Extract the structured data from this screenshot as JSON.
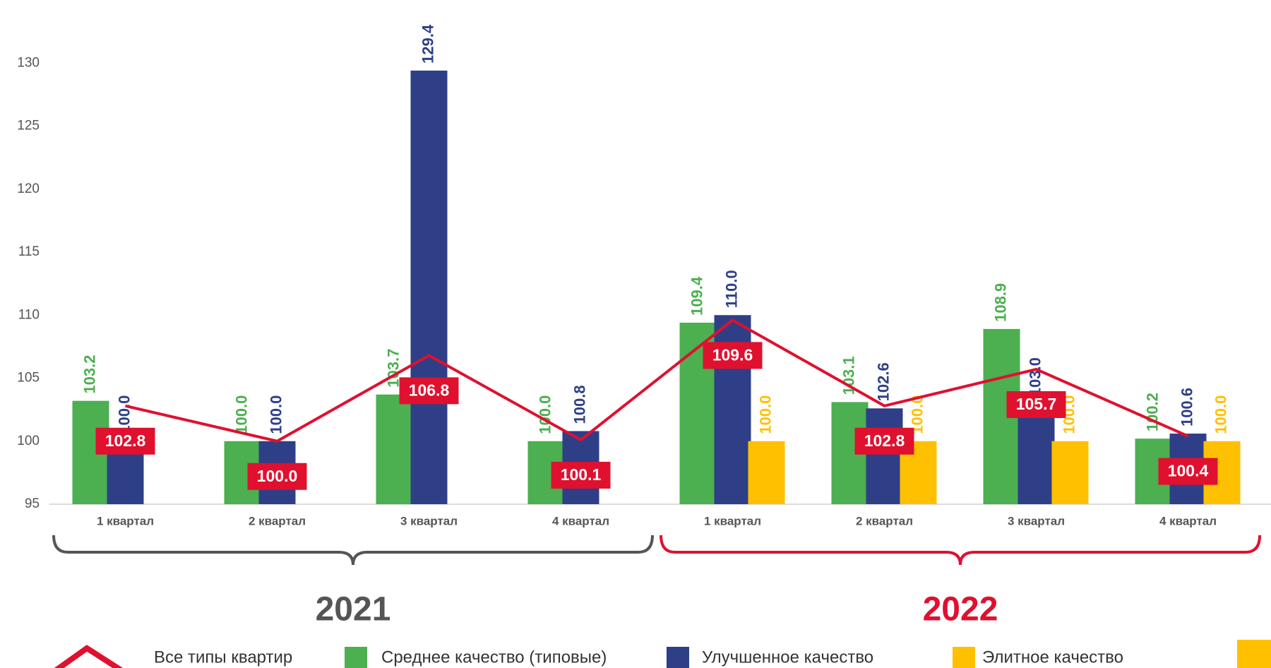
{
  "chart_data": {
    "type": "bar",
    "categories": [
      "1 квартал",
      "2 квартал",
      "3 квартал",
      "4 квартал",
      "1 квартал",
      "2 квартал",
      "3 квартал",
      "4 квартал"
    ],
    "groups": [
      "2021",
      "2022"
    ],
    "group_colors": [
      "#555555",
      "#e0102f"
    ],
    "series": [
      {
        "name": "Все типы квартир",
        "type": "line",
        "color": "#e0102f",
        "values": [
          102.8,
          100.0,
          106.8,
          100.1,
          109.6,
          102.8,
          105.7,
          100.4
        ],
        "value_labels": [
          "102.8",
          "100.0",
          "106.8",
          "100.1",
          "109.6",
          "102.8",
          "105.7",
          "100.4"
        ]
      },
      {
        "name": "Среднее качество (типовые)",
        "type": "bar",
        "color": "#4caf50",
        "values": [
          103.2,
          100.0,
          103.7,
          100.0,
          109.4,
          103.1,
          108.9,
          100.2
        ],
        "value_labels": [
          "103.2",
          "100.0",
          "103.7",
          "100.0",
          "109.4",
          "103.1",
          "108.9",
          "100.2"
        ]
      },
      {
        "name": "Улучшенное качество",
        "type": "bar",
        "color": "#2e3f87",
        "values": [
          100.0,
          100.0,
          129.4,
          100.8,
          110.0,
          102.6,
          103.0,
          100.6
        ],
        "value_labels": [
          "100.0",
          "100.0",
          "129.4",
          "100.8",
          "110.0",
          "102.6",
          "103.0",
          "100.6"
        ]
      },
      {
        "name": "Элитное качество",
        "type": "bar",
        "color": "#ffc000",
        "values": [
          null,
          null,
          null,
          null,
          100.0,
          100.0,
          100.0,
          100.0
        ],
        "value_labels": [
          null,
          null,
          null,
          null,
          "100.0",
          "100.0",
          "100.0",
          "100.0"
        ]
      }
    ],
    "ylim": [
      95,
      135
    ],
    "yticks": [
      95,
      100,
      105,
      110,
      115,
      120,
      125,
      130
    ],
    "grid": false
  }
}
